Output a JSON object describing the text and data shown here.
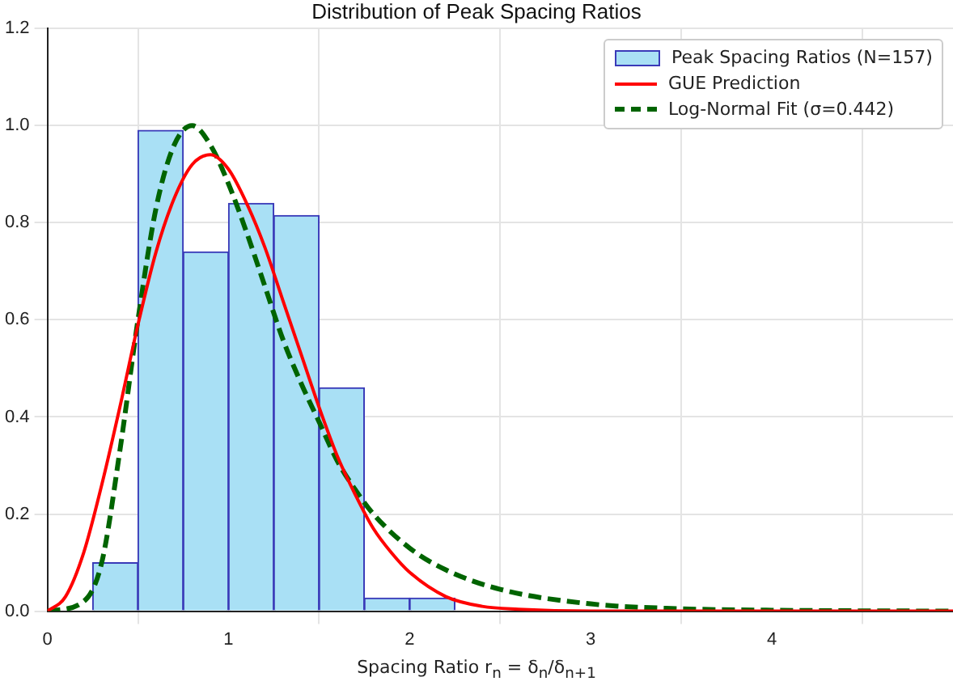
{
  "chart_data": {
    "type": "histogram",
    "title": "Distribution of Peak Spacing Ratios",
    "xlabel": "Spacing Ratio r$_{n}$ = δ$_{n}$/δ$_{n+1}$",
    "series": [
      {
        "name": "Peak Spacing Ratios (N=157)",
        "color": "#a9e0f5",
        "bins": [
          0,
          0.25,
          0.5,
          0.75,
          1,
          1.25,
          1.5,
          1.75,
          2,
          2.25
        ],
        "values": [
          0,
          0.1,
          0.99,
          0.74,
          0.84,
          0.815,
          0.46,
          0.027,
          0.027
        ]
      },
      {
        "type": "line",
        "name": "GUE Prediction",
        "color": "#ff0000",
        "line_style": "solid",
        "x": [
          0,
          0.1,
          0.2,
          0.3,
          0.4,
          0.5,
          0.6,
          0.7,
          0.8,
          0.9,
          1.0,
          1.1,
          1.2,
          1.3,
          1.4,
          1.5,
          1.6,
          1.7,
          1.8,
          1.9,
          2.0,
          2.2,
          2.4,
          2.6,
          3.0,
          5.0
        ],
        "values": [
          0,
          0.03,
          0.12,
          0.26,
          0.42,
          0.59,
          0.74,
          0.85,
          0.92,
          0.94,
          0.91,
          0.84,
          0.75,
          0.64,
          0.53,
          0.42,
          0.32,
          0.24,
          0.17,
          0.12,
          0.08,
          0.03,
          0.01,
          0.004,
          0,
          0
        ]
      },
      {
        "type": "line",
        "name": "Log-Normal Fit (σ=0.442)",
        "color": "#006400",
        "line_style": "dashed",
        "x": [
          0,
          0.2,
          0.3,
          0.4,
          0.5,
          0.6,
          0.7,
          0.8,
          0.9,
          1.0,
          1.1,
          1.2,
          1.3,
          1.4,
          1.5,
          1.6,
          1.7,
          1.8,
          2.0,
          2.2,
          2.5,
          3.0,
          3.5,
          4.0,
          5.0
        ],
        "values": [
          0,
          0.02,
          0.1,
          0.33,
          0.6,
          0.83,
          0.96,
          1.0,
          0.96,
          0.88,
          0.78,
          0.67,
          0.56,
          0.47,
          0.39,
          0.31,
          0.25,
          0.2,
          0.13,
          0.085,
          0.045,
          0.015,
          0.005,
          0.002,
          0
        ]
      }
    ],
    "xlim": [
      0,
      5
    ],
    "xticks": [
      0,
      1,
      2,
      3,
      4
    ],
    "ylim": [
      0,
      1.2
    ],
    "yticks": [
      {
        "value": 0,
        "label": "0.0"
      },
      {
        "value": 0.2,
        "label": "0.2"
      },
      {
        "value": 0.4,
        "label": "0.4"
      },
      {
        "value": 0.6,
        "label": "0.6"
      },
      {
        "value": 0.8,
        "label": "0.8"
      },
      {
        "value": 1.0,
        "label": "1.0"
      },
      {
        "value": 1.2,
        "label": "1.2"
      }
    ],
    "grid": true,
    "legend": "top right",
    "marker": "none"
  }
}
